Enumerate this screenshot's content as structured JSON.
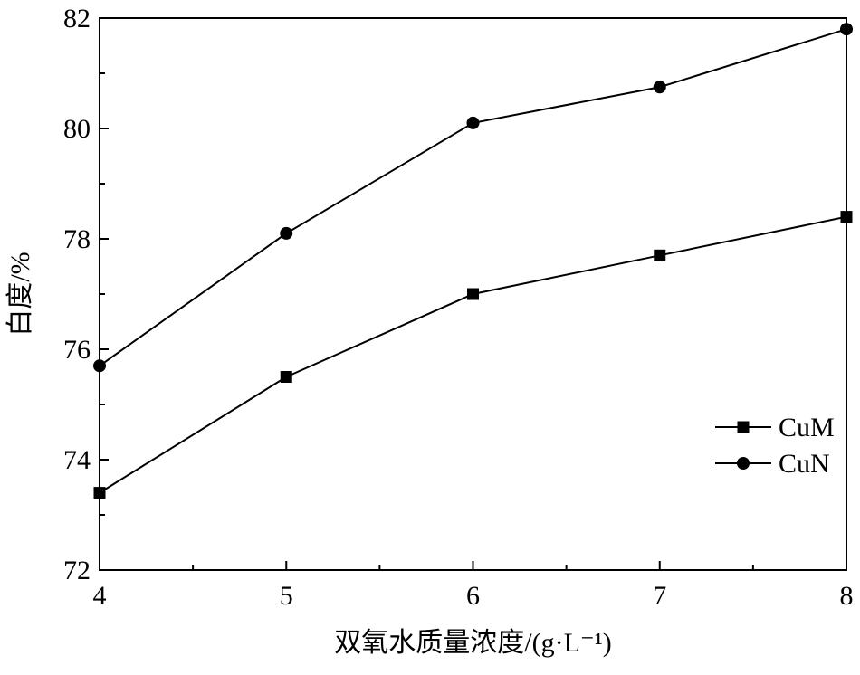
{
  "chart_data": {
    "type": "line",
    "xlabel": "双氧水质量浓度/(g·L⁻¹)",
    "ylabel": "白度/%",
    "x": [
      4,
      5,
      6,
      7,
      8
    ],
    "xlim": [
      4,
      8
    ],
    "ylim": [
      72,
      82
    ],
    "xticks": [
      4,
      5,
      6,
      7,
      8
    ],
    "yticks": [
      72,
      74,
      76,
      78,
      80,
      82
    ],
    "grid": false,
    "legend_position": "right",
    "series": [
      {
        "name": "CuM",
        "marker": "square",
        "values": [
          73.4,
          75.5,
          77.0,
          77.7,
          78.4
        ]
      },
      {
        "name": "CuN",
        "marker": "circle",
        "values": [
          75.7,
          78.1,
          80.1,
          80.75,
          81.8
        ]
      }
    ]
  }
}
